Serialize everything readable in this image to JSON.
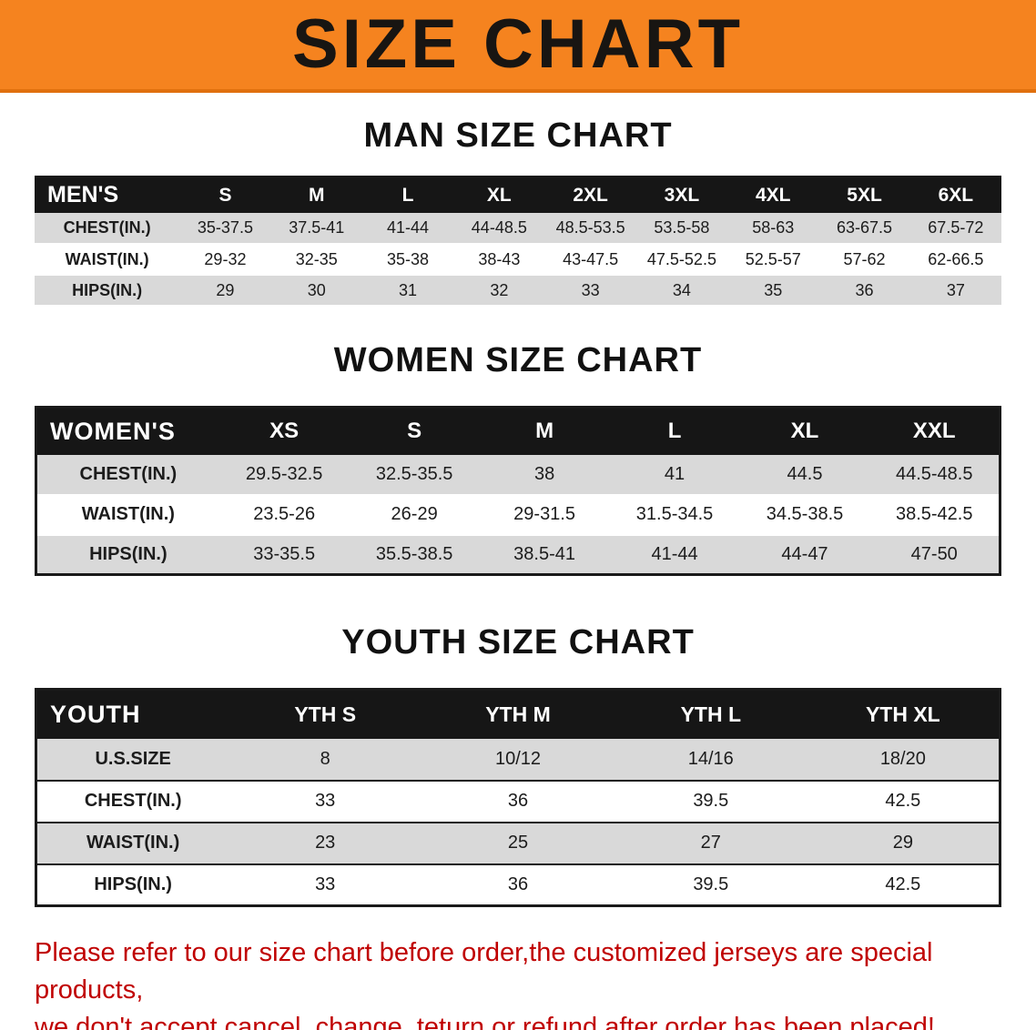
{
  "banner": {
    "title": "SIZE CHART",
    "bg_color": "#f5831f"
  },
  "sections": [
    {
      "heading": "MAN SIZE CHART",
      "table": {
        "header": [
          "MEN'S",
          "S",
          "M",
          "L",
          "XL",
          "2XL",
          "3XL",
          "4XL",
          "5XL",
          "6XL"
        ],
        "rows": [
          {
            "label": "CHEST(IN.)",
            "values": [
              "35-37.5",
              "37.5-41",
              "41-44",
              "44-48.5",
              "48.5-53.5",
              "53.5-58",
              "58-63",
              "63-67.5",
              "67.5-72"
            ]
          },
          {
            "label": "WAIST(IN.)",
            "values": [
              "29-32",
              "32-35",
              "35-38",
              "38-43",
              "43-47.5",
              "47.5-52.5",
              "52.5-57",
              "57-62",
              "62-66.5"
            ]
          },
          {
            "label": "HIPS(IN.)",
            "values": [
              "29",
              "30",
              "31",
              "32",
              "33",
              "34",
              "35",
              "36",
              "37"
            ]
          }
        ]
      }
    },
    {
      "heading": "WOMEN SIZE CHART",
      "table": {
        "header": [
          "WOMEN'S",
          "XS",
          "S",
          "M",
          "L",
          "XL",
          "XXL"
        ],
        "rows": [
          {
            "label": "CHEST(IN.)",
            "values": [
              "29.5-32.5",
              "32.5-35.5",
              "38",
              "41",
              "44.5",
              "44.5-48.5"
            ]
          },
          {
            "label": "WAIST(IN.)",
            "values": [
              "23.5-26",
              "26-29",
              "29-31.5",
              "31.5-34.5",
              "34.5-38.5",
              "38.5-42.5"
            ]
          },
          {
            "label": "HIPS(IN.)",
            "values": [
              "33-35.5",
              "35.5-38.5",
              "38.5-41",
              "41-44",
              "44-47",
              "47-50"
            ]
          }
        ]
      }
    },
    {
      "heading": "YOUTH SIZE CHART",
      "table": {
        "header": [
          "YOUTH",
          "YTH S",
          "YTH M",
          "YTH L",
          "YTH XL"
        ],
        "rows": [
          {
            "label": "U.S.SIZE",
            "values": [
              "8",
              "10/12",
              "14/16",
              "18/20"
            ]
          },
          {
            "label": "CHEST(IN.)",
            "values": [
              "33",
              "36",
              "39.5",
              "42.5"
            ]
          },
          {
            "label": "WAIST(IN.)",
            "values": [
              "23",
              "25",
              "27",
              "29"
            ]
          },
          {
            "label": "HIPS(IN.)",
            "values": [
              "33",
              "36",
              "39.5",
              "42.5"
            ]
          }
        ]
      }
    }
  ],
  "footer": {
    "color": "#c00000",
    "lines": [
      "Please refer to our size chart before order,the customized jerseys are special products,",
      "we don't accept cancel, change, teturn or refund after order has been placed!"
    ]
  }
}
